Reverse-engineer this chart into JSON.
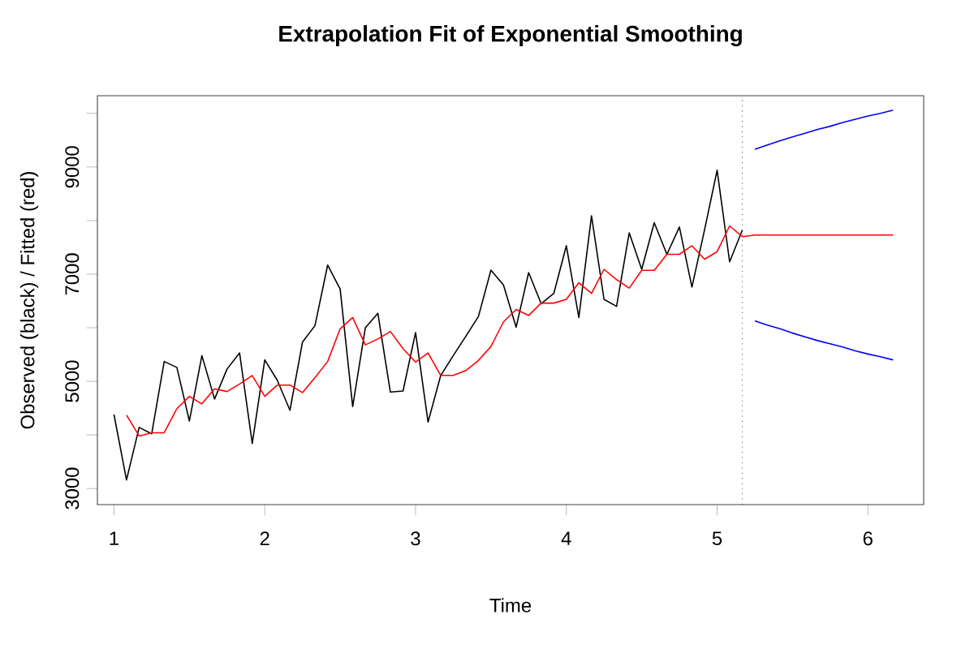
{
  "chart_data": {
    "type": "line",
    "title": "Extrapolation Fit of Exponential Smoothing",
    "xlabel": "Time",
    "ylabel": "Observed (black) / Fitted (red)",
    "xlim": [
      0.89,
      6.37
    ],
    "ylim": [
      2700,
      10330
    ],
    "xticks": [
      1,
      2,
      3,
      4,
      5,
      6
    ],
    "yticks": [
      3000,
      {
        "value": 4000,
        "label": null
      },
      5000,
      {
        "value": 6000,
        "label": null
      },
      7000,
      {
        "value": 8000,
        "label": null
      },
      9000,
      {
        "value": 10000,
        "label": null
      }
    ],
    "grid": false,
    "marker": "none",
    "line_style": "solid",
    "ref_lines": [
      {
        "axis": "x",
        "value": 5.167,
        "color": "#555555",
        "line_style": "dotted"
      }
    ],
    "series": [
      {
        "color": "#000000",
        "x": [
          1,
          1.083,
          1.167,
          1.25,
          1.333,
          1.417,
          1.5,
          1.583,
          1.667,
          1.75,
          1.833,
          1.917,
          2,
          2.083,
          2.167,
          2.25,
          2.333,
          2.417,
          2.5,
          2.583,
          2.667,
          2.75,
          2.833,
          2.917,
          3,
          3.083,
          3.167,
          3.25,
          3.333,
          3.417,
          3.5,
          3.583,
          3.667,
          3.75,
          3.833,
          3.917,
          4,
          4.083,
          4.167,
          4.25,
          4.333,
          4.417,
          4.5,
          4.583,
          4.667,
          4.75,
          4.833,
          4.917,
          5,
          5.083,
          5.167
        ],
        "values": [
          4380,
          3160,
          4140,
          4020,
          5370,
          5260,
          4260,
          5480,
          4670,
          5230,
          5530,
          3840,
          5400,
          5020,
          4460,
          5730,
          6040,
          7170,
          6720,
          4530,
          6000,
          6270,
          4800,
          4820,
          5910,
          4240,
          5110,
          5480,
          5840,
          6210,
          7075,
          6800,
          6010,
          7030,
          6450,
          6640,
          7530,
          6190,
          8090,
          6530,
          6400,
          7770,
          7090,
          7960,
          7370,
          7880,
          6760,
          7830,
          8940,
          7230,
          7820
        ]
      },
      {
        "color": "#ff0000",
        "x": [
          1.083,
          1.167,
          1.25,
          1.333,
          1.417,
          1.5,
          1.583,
          1.667,
          1.75,
          1.833,
          1.917,
          2,
          2.083,
          2.167,
          2.25,
          2.333,
          2.417,
          2.5,
          2.583,
          2.667,
          2.75,
          2.833,
          2.917,
          3,
          3.083,
          3.167,
          3.25,
          3.333,
          3.417,
          3.5,
          3.583,
          3.667,
          3.75,
          3.833,
          3.917,
          4,
          4.083,
          4.167,
          4.25,
          4.333,
          4.417,
          4.5,
          4.583,
          4.667,
          4.75,
          4.833,
          4.917,
          5,
          5.083,
          5.167,
          5.25,
          5.333,
          5.417,
          5.5,
          5.583,
          5.667,
          5.75,
          5.833,
          5.917,
          6,
          6.083,
          6.167
        ],
        "values": [
          4370,
          3980,
          4040,
          4040,
          4490,
          4720,
          4580,
          4860,
          4810,
          4950,
          5110,
          4720,
          4930,
          4930,
          4790,
          5070,
          5370,
          5980,
          6190,
          5680,
          5790,
          5930,
          5610,
          5360,
          5530,
          5110,
          5110,
          5200,
          5390,
          5650,
          6110,
          6340,
          6230,
          6460,
          6460,
          6530,
          6840,
          6640,
          7090,
          6900,
          6740,
          7070,
          7070,
          7370,
          7370,
          7530,
          7280,
          7420,
          7900,
          7700,
          7730,
          7730,
          7730,
          7730,
          7730,
          7730,
          7730,
          7730,
          7730,
          7730,
          7730,
          7730
        ]
      },
      {
        "color": "#0000ff",
        "x": [
          5.25,
          5.333,
          5.417,
          5.5,
          5.583,
          5.667,
          5.75,
          5.833,
          5.917,
          6,
          6.083,
          6.167
        ],
        "values": [
          9330,
          9410,
          9490,
          9560,
          9630,
          9700,
          9760,
          9830,
          9890,
          9950,
          10000,
          10060
        ]
      },
      {
        "color": "#0000ff",
        "x": [
          5.25,
          5.333,
          5.417,
          5.5,
          5.583,
          5.667,
          5.75,
          5.833,
          5.917,
          6,
          6.083,
          6.167
        ],
        "values": [
          6130,
          6050,
          5980,
          5900,
          5830,
          5760,
          5700,
          5640,
          5570,
          5510,
          5460,
          5400
        ]
      }
    ]
  }
}
